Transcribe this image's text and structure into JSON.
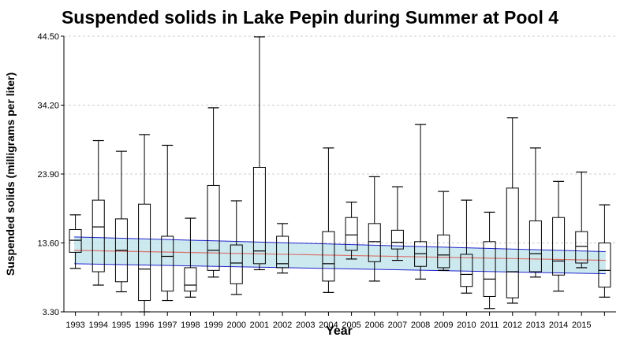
{
  "chart_data": {
    "type": "boxplot",
    "title": "Suspended solids in Lake Pepin during Summer at Pool 4",
    "xlabel": "Year",
    "ylabel": "Suspended solids (milligrams per liter)",
    "ylim": [
      3.3,
      44.5
    ],
    "yticks": [
      "3.30",
      "13.60",
      "23.90",
      "34.20",
      "44.50"
    ],
    "categories": [
      "1993",
      "1994",
      "1995",
      "1996",
      "1997",
      "1998",
      "1999",
      "2000",
      "2001",
      "2002",
      "2003",
      "2004",
      "2005",
      "2006",
      "2007",
      "2008",
      "2009",
      "2010",
      "2011",
      "2012",
      "2013",
      "2014",
      "2015",
      ""
    ],
    "boxes": [
      {
        "min": 9.8,
        "q1": 12.2,
        "median": 14.0,
        "q3": 15.6,
        "max": 17.8
      },
      {
        "min": 7.3,
        "q1": 9.3,
        "median": 16.0,
        "q3": 20.0,
        "max": 28.9
      },
      {
        "min": 6.3,
        "q1": 7.8,
        "median": 12.5,
        "q3": 17.2,
        "max": 27.3
      },
      {
        "min": 3.3,
        "q1": 5.0,
        "median": 9.7,
        "q3": 19.4,
        "max": 29.8
      },
      {
        "min": 5.0,
        "q1": 6.4,
        "median": 11.6,
        "q3": 14.6,
        "max": 28.2
      },
      {
        "min": 5.5,
        "q1": 6.4,
        "median": 7.3,
        "q3": 9.9,
        "max": 17.3
      },
      {
        "min": 8.5,
        "q1": 9.5,
        "median": 12.5,
        "q3": 22.2,
        "max": 33.8
      },
      {
        "min": 5.9,
        "q1": 7.5,
        "median": 10.6,
        "q3": 13.3,
        "max": 19.9
      },
      {
        "min": 9.6,
        "q1": 10.5,
        "median": 12.4,
        "q3": 24.9,
        "max": 44.4
      },
      {
        "min": 9.1,
        "q1": 9.9,
        "median": 10.5,
        "q3": 14.6,
        "max": 16.5
      },
      null,
      {
        "min": 6.2,
        "q1": 7.9,
        "median": 10.5,
        "q3": 15.3,
        "max": 27.8
      },
      {
        "min": 11.2,
        "q1": 12.5,
        "median": 14.8,
        "q3": 17.4,
        "max": 19.7
      },
      {
        "min": 7.9,
        "q1": 10.8,
        "median": 13.8,
        "q3": 16.5,
        "max": 23.5
      },
      {
        "min": 11.0,
        "q1": 12.7,
        "median": 13.7,
        "q3": 15.5,
        "max": 22.0
      },
      {
        "min": 8.2,
        "q1": 10.1,
        "median": 12.0,
        "q3": 13.8,
        "max": 31.3
      },
      {
        "min": 9.5,
        "q1": 9.9,
        "median": 11.8,
        "q3": 14.8,
        "max": 21.3
      },
      {
        "min": 6.1,
        "q1": 7.1,
        "median": 8.9,
        "q3": 11.9,
        "max": 20.0
      },
      {
        "min": 3.8,
        "q1": 5.6,
        "median": 8.2,
        "q3": 13.8,
        "max": 18.2
      },
      {
        "min": 4.6,
        "q1": 5.4,
        "median": 9.3,
        "q3": 21.8,
        "max": 32.3
      },
      {
        "min": 8.5,
        "q1": 9.3,
        "median": 12.0,
        "q3": 16.9,
        "max": 27.8
      },
      {
        "min": 6.4,
        "q1": 8.8,
        "median": 10.9,
        "q3": 17.4,
        "max": 22.8
      },
      {
        "min": 9.9,
        "q1": 10.6,
        "median": 13.1,
        "q3": 15.3,
        "max": 24.2
      },
      {
        "min": 5.5,
        "q1": 7.0,
        "median": 9.5,
        "q3": 13.6,
        "max": 19.3
      }
    ],
    "trend": {
      "start": 12.5,
      "end": 11.0
    },
    "band_upper": {
      "start": 14.5,
      "end": 12.3
    },
    "band_lower": {
      "start": 10.5,
      "end": 9.0
    },
    "colors": {
      "box": "#000000",
      "trend": "#d9736b",
      "band_fill": "#bfe3ec",
      "band_edge": "#2222cc",
      "grid": "#cccccc"
    },
    "grid": "horizontal dashed",
    "legend": "none"
  }
}
